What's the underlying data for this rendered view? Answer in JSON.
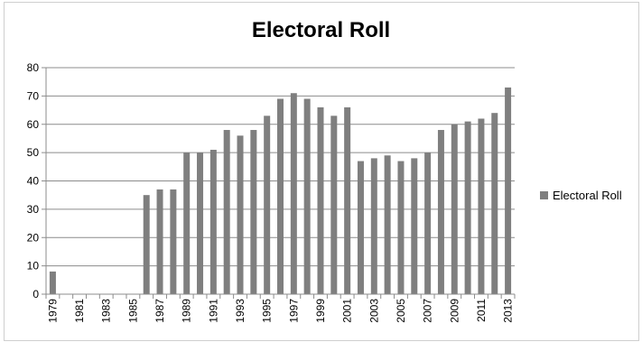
{
  "chart_data": {
    "type": "bar",
    "title": "Electoral Roll",
    "xlabel": "",
    "ylabel": "",
    "ylim": [
      0,
      80
    ],
    "yticks": [
      0,
      10,
      20,
      30,
      40,
      50,
      60,
      70,
      80
    ],
    "grid": true,
    "legend_position": "right",
    "bar_color": "#7f7f7f",
    "categories": [
      "1979",
      "1980",
      "1981",
      "1982",
      "1983",
      "1984",
      "1985",
      "1986",
      "1987",
      "1988",
      "1989",
      "1990",
      "1991",
      "1992",
      "1993",
      "1994",
      "1995",
      "1996",
      "1997",
      "1998",
      "1999",
      "2000",
      "2001",
      "2002",
      "2003",
      "2004",
      "2005",
      "2006",
      "2007",
      "2008",
      "2009",
      "2010",
      "2011",
      "2012",
      "2013"
    ],
    "tick_labels": [
      "1979",
      "1981",
      "1983",
      "1985",
      "1987",
      "1989",
      "1991",
      "1993",
      "1995",
      "1997",
      "1999",
      "2001",
      "2003",
      "2005",
      "2007",
      "2009",
      "2011",
      "2013"
    ],
    "series": [
      {
        "name": "Electoral Roll",
        "values": [
          8,
          0,
          0,
          0,
          0,
          0,
          0,
          35,
          37,
          37,
          50,
          50,
          51,
          58,
          56,
          58,
          63,
          69,
          71,
          69,
          66,
          63,
          66,
          47,
          48,
          49,
          47,
          48,
          50,
          58,
          60,
          61,
          62,
          64,
          73
        ]
      }
    ]
  }
}
